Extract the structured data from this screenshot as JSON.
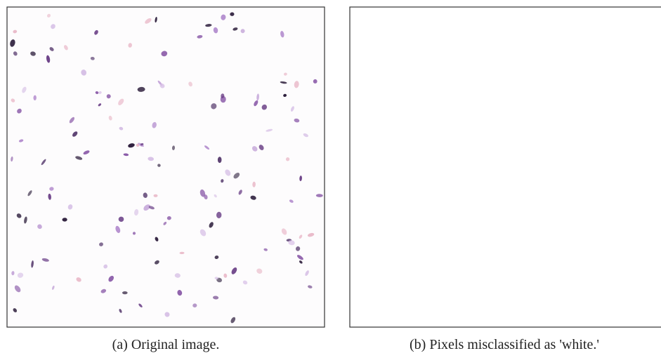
{
  "figure": {
    "panels": [
      {
        "caption": "(a) Original image."
      },
      {
        "caption": "(b) Pixels misclassified as 'white.'"
      }
    ]
  }
}
